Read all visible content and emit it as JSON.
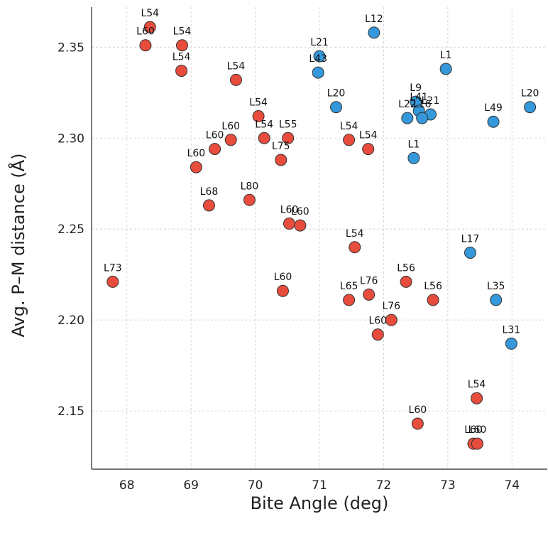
{
  "chart_data": {
    "type": "scatter",
    "xlabel": "Bite Angle (deg)",
    "ylabel": "Avg. P–M distance (Å)",
    "xlim": [
      67.45,
      74.55
    ],
    "ylim": [
      2.118,
      2.372
    ],
    "xticks": [
      68,
      69,
      70,
      71,
      72,
      73,
      74
    ],
    "yticks": [
      2.15,
      2.2,
      2.25,
      2.3,
      2.35
    ],
    "ytick_labels": [
      "2.15",
      "2.20",
      "2.25",
      "2.30",
      "2.35"
    ],
    "grid": true,
    "colors": {
      "red": "#e74c3c",
      "blue": "#3498db",
      "edge": "#333333"
    },
    "series": [
      {
        "color": "red",
        "points": [
          {
            "x": 68.36,
            "y": 2.361,
            "label": "L54"
          },
          {
            "x": 68.29,
            "y": 2.351,
            "label": "L60"
          },
          {
            "x": 68.86,
            "y": 2.351,
            "label": "L54"
          },
          {
            "x": 68.85,
            "y": 2.337,
            "label": "L54"
          },
          {
            "x": 69.7,
            "y": 2.332,
            "label": "L54"
          },
          {
            "x": 70.05,
            "y": 2.312,
            "label": "L54"
          },
          {
            "x": 69.62,
            "y": 2.299,
            "label": "L60"
          },
          {
            "x": 69.37,
            "y": 2.294,
            "label": "L60"
          },
          {
            "x": 70.14,
            "y": 2.3,
            "label": "L54"
          },
          {
            "x": 70.51,
            "y": 2.3,
            "label": "L55"
          },
          {
            "x": 70.4,
            "y": 2.288,
            "label": "L75"
          },
          {
            "x": 69.08,
            "y": 2.284,
            "label": "L60"
          },
          {
            "x": 69.28,
            "y": 2.263,
            "label": "L68"
          },
          {
            "x": 69.91,
            "y": 2.266,
            "label": "L80"
          },
          {
            "x": 70.53,
            "y": 2.253,
            "label": "L60"
          },
          {
            "x": 70.7,
            "y": 2.252,
            "label": "L60"
          },
          {
            "x": 71.46,
            "y": 2.299,
            "label": "L54"
          },
          {
            "x": 71.76,
            "y": 2.294,
            "label": "L54"
          },
          {
            "x": 71.55,
            "y": 2.24,
            "label": "L54"
          },
          {
            "x": 67.78,
            "y": 2.221,
            "label": "L73"
          },
          {
            "x": 70.43,
            "y": 2.216,
            "label": "L60"
          },
          {
            "x": 71.46,
            "y": 2.211,
            "label": "L65"
          },
          {
            "x": 71.77,
            "y": 2.214,
            "label": "L76"
          },
          {
            "x": 72.35,
            "y": 2.221,
            "label": "L56"
          },
          {
            "x": 72.77,
            "y": 2.211,
            "label": "L56"
          },
          {
            "x": 72.12,
            "y": 2.2,
            "label": "L76"
          },
          {
            "x": 71.91,
            "y": 2.192,
            "label": "L60"
          },
          {
            "x": 73.45,
            "y": 2.157,
            "label": "L54"
          },
          {
            "x": 72.53,
            "y": 2.143,
            "label": "L60"
          },
          {
            "x": 73.4,
            "y": 2.132,
            "label": "L60"
          },
          {
            "x": 73.46,
            "y": 2.132,
            "label": "L60"
          }
        ]
      },
      {
        "color": "blue",
        "points": [
          {
            "x": 71.85,
            "y": 2.358,
            "label": "L12"
          },
          {
            "x": 71.0,
            "y": 2.345,
            "label": "L21"
          },
          {
            "x": 70.98,
            "y": 2.336,
            "label": "L43"
          },
          {
            "x": 72.97,
            "y": 2.338,
            "label": "L1"
          },
          {
            "x": 71.26,
            "y": 2.317,
            "label": "L20"
          },
          {
            "x": 74.28,
            "y": 2.317,
            "label": "L20"
          },
          {
            "x": 72.5,
            "y": 2.32,
            "label": "L9"
          },
          {
            "x": 72.55,
            "y": 2.315,
            "label": "L41"
          },
          {
            "x": 72.73,
            "y": 2.313,
            "label": "L21"
          },
          {
            "x": 72.37,
            "y": 2.311,
            "label": "L22"
          },
          {
            "x": 72.6,
            "y": 2.311,
            "label": "L16"
          },
          {
            "x": 73.71,
            "y": 2.309,
            "label": "L49"
          },
          {
            "x": 72.47,
            "y": 2.289,
            "label": "L1"
          },
          {
            "x": 73.35,
            "y": 2.237,
            "label": "L17"
          },
          {
            "x": 73.75,
            "y": 2.211,
            "label": "L35"
          },
          {
            "x": 73.99,
            "y": 2.187,
            "label": "L31"
          }
        ]
      }
    ]
  }
}
